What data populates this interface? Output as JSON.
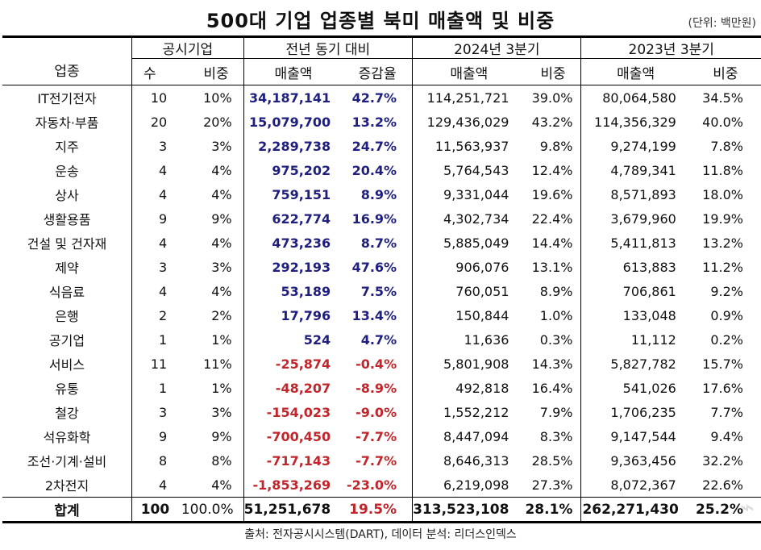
{
  "title": "500대 기업 업종별 북미 매출액 및 비중",
  "unit": "(단위: 백만원)",
  "colors": {
    "increase": "#1f1f7f",
    "decrease": "#c0262b"
  },
  "headers": {
    "industry": "업종",
    "disclosed": "공시기업",
    "yoy": "전년 동기 대비",
    "q3_2024": "2024년 3분기",
    "q3_2023": "2023년 3분기",
    "count": "수",
    "share": "비중",
    "sales": "매출액",
    "change_rate": "증감율",
    "share_2024": "비중",
    "sales_2024": "매출액",
    "sales_2023": "매출액",
    "share_2023": "비중"
  },
  "rows": [
    {
      "industry": "IT전기전자",
      "count": "10",
      "share": "10%",
      "yoy_sales": "34,187,141",
      "yoy_rate": "42.7%",
      "sales_2024": "114,251,721",
      "share_2024": "39.0%",
      "sales_2023": "80,064,580",
      "share_2023": "34.5%",
      "trend": "up"
    },
    {
      "industry": "자동차·부품",
      "count": "20",
      "share": "20%",
      "yoy_sales": "15,079,700",
      "yoy_rate": "13.2%",
      "sales_2024": "129,436,029",
      "share_2024": "43.2%",
      "sales_2023": "114,356,329",
      "share_2023": "40.0%",
      "trend": "up"
    },
    {
      "industry": "지주",
      "count": "3",
      "share": "3%",
      "yoy_sales": "2,289,738",
      "yoy_rate": "24.7%",
      "sales_2024": "11,563,937",
      "share_2024": "9.8%",
      "sales_2023": "9,274,199",
      "share_2023": "7.8%",
      "trend": "up"
    },
    {
      "industry": "운송",
      "count": "4",
      "share": "4%",
      "yoy_sales": "975,202",
      "yoy_rate": "20.4%",
      "sales_2024": "5,764,543",
      "share_2024": "12.4%",
      "sales_2023": "4,789,341",
      "share_2023": "11.8%",
      "trend": "up"
    },
    {
      "industry": "상사",
      "count": "4",
      "share": "4%",
      "yoy_sales": "759,151",
      "yoy_rate": "8.9%",
      "sales_2024": "9,331,044",
      "share_2024": "19.6%",
      "sales_2023": "8,571,893",
      "share_2023": "18.0%",
      "trend": "up"
    },
    {
      "industry": "생활용품",
      "count": "9",
      "share": "9%",
      "yoy_sales": "622,774",
      "yoy_rate": "16.9%",
      "sales_2024": "4,302,734",
      "share_2024": "22.4%",
      "sales_2023": "3,679,960",
      "share_2023": "19.9%",
      "trend": "up"
    },
    {
      "industry": "건설 및 건자재",
      "count": "4",
      "share": "4%",
      "yoy_sales": "473,236",
      "yoy_rate": "8.7%",
      "sales_2024": "5,885,049",
      "share_2024": "14.4%",
      "sales_2023": "5,411,813",
      "share_2023": "13.2%",
      "trend": "up"
    },
    {
      "industry": "제약",
      "count": "3",
      "share": "3%",
      "yoy_sales": "292,193",
      "yoy_rate": "47.6%",
      "sales_2024": "906,076",
      "share_2024": "13.1%",
      "sales_2023": "613,883",
      "share_2023": "11.2%",
      "trend": "up"
    },
    {
      "industry": "식음료",
      "count": "4",
      "share": "4%",
      "yoy_sales": "53,189",
      "yoy_rate": "7.5%",
      "sales_2024": "760,051",
      "share_2024": "8.9%",
      "sales_2023": "706,861",
      "share_2023": "9.2%",
      "trend": "up"
    },
    {
      "industry": "은행",
      "count": "2",
      "share": "2%",
      "yoy_sales": "17,796",
      "yoy_rate": "13.4%",
      "sales_2024": "150,844",
      "share_2024": "1.0%",
      "sales_2023": "133,048",
      "share_2023": "0.9%",
      "trend": "up"
    },
    {
      "industry": "공기업",
      "count": "1",
      "share": "1%",
      "yoy_sales": "524",
      "yoy_rate": "4.7%",
      "sales_2024": "11,636",
      "share_2024": "0.3%",
      "sales_2023": "11,112",
      "share_2023": "0.2%",
      "trend": "up"
    },
    {
      "industry": "서비스",
      "count": "11",
      "share": "11%",
      "yoy_sales": "-25,874",
      "yoy_rate": "-0.4%",
      "sales_2024": "5,801,908",
      "share_2024": "14.3%",
      "sales_2023": "5,827,782",
      "share_2023": "15.7%",
      "trend": "down"
    },
    {
      "industry": "유통",
      "count": "1",
      "share": "1%",
      "yoy_sales": "-48,207",
      "yoy_rate": "-8.9%",
      "sales_2024": "492,818",
      "share_2024": "16.4%",
      "sales_2023": "541,026",
      "share_2023": "17.6%",
      "trend": "down"
    },
    {
      "industry": "철강",
      "count": "3",
      "share": "3%",
      "yoy_sales": "-154,023",
      "yoy_rate": "-9.0%",
      "sales_2024": "1,552,212",
      "share_2024": "7.9%",
      "sales_2023": "1,706,235",
      "share_2023": "7.7%",
      "trend": "down"
    },
    {
      "industry": "석유화학",
      "count": "9",
      "share": "9%",
      "yoy_sales": "-700,450",
      "yoy_rate": "-7.7%",
      "sales_2024": "8,447,094",
      "share_2024": "8.3%",
      "sales_2023": "9,147,544",
      "share_2023": "9.4%",
      "trend": "down"
    },
    {
      "industry": "조선·기계·설비",
      "count": "8",
      "share": "8%",
      "yoy_sales": "-717,143",
      "yoy_rate": "-7.7%",
      "sales_2024": "8,646,313",
      "share_2024": "28.5%",
      "sales_2023": "9,363,456",
      "share_2023": "32.2%",
      "trend": "down"
    },
    {
      "industry": "2차전지",
      "count": "4",
      "share": "4%",
      "yoy_sales": "-1,853,269",
      "yoy_rate": "-23.0%",
      "sales_2024": "6,219,098",
      "share_2024": "27.3%",
      "sales_2023": "8,072,367",
      "share_2023": "22.6%",
      "trend": "down"
    }
  ],
  "total": {
    "industry": "합계",
    "count": "100",
    "share": "100.0%",
    "yoy_sales": "51,251,678",
    "yoy_rate": "19.5%",
    "sales_2024": "313,523,108",
    "share_2024": "28.1%",
    "sales_2023": "262,271,430",
    "share_2023": "25.2%"
  },
  "footer": "출처: 전자공시시스템(DART), 데이터 분석: 리더스인덱스",
  "watermark": "뉴스1"
}
